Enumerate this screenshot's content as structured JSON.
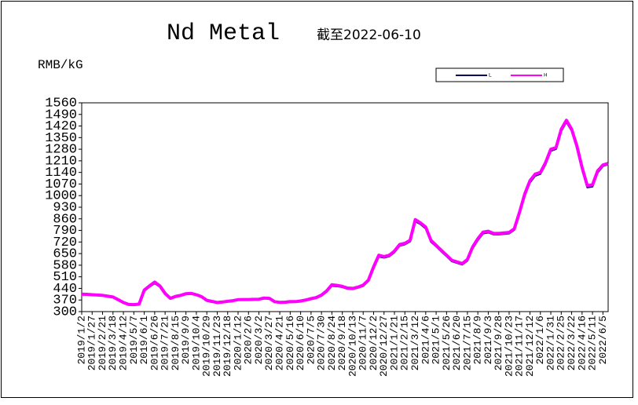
{
  "chart_data": {
    "type": "line",
    "title": "Nd Metal",
    "subtitle": "截至2022-06-10",
    "y_label": "RMB/kG",
    "categories": [
      "2019/1/2",
      null,
      "2019/1/27",
      null,
      "2019/2/21",
      null,
      "2019/3/18",
      null,
      "2019/4/12",
      null,
      "2019/5/7",
      null,
      "2019/6/1",
      null,
      "2019/6/26",
      null,
      "2019/7/21",
      null,
      "2019/8/15",
      null,
      "2019/9/9",
      null,
      "2019/10/4",
      null,
      "2019/10/29",
      null,
      "2019/11/23",
      null,
      "2019/12/18",
      null,
      "2020/1/12",
      null,
      "2020/2/6",
      null,
      "2020/3/2",
      null,
      "2020/3/27",
      null,
      "2020/4/21",
      null,
      "2020/5/16",
      null,
      "2020/6/10",
      null,
      "2020/7/5",
      null,
      "2020/7/30",
      null,
      "2020/8/24",
      null,
      "2020/9/18",
      null,
      "2020/10/13",
      null,
      "2020/11/7",
      null,
      "2020/12/2",
      null,
      "2020/12/27",
      null,
      "2021/1/21",
      null,
      "2021/2/15",
      null,
      "2021/3/12",
      null,
      "2021/4/6",
      null,
      "2021/5/1",
      null,
      "2021/5/26",
      null,
      "2021/6/20",
      null,
      "2021/7/15",
      null,
      "2021/8/9",
      null,
      "2021/9/3",
      null,
      "2021/9/28",
      null,
      "2021/10/23",
      null,
      "2021/11/17",
      null,
      "2021/12/12",
      null,
      "2022/1/6",
      null,
      "2022/1/31",
      null,
      "2022/2/25",
      null,
      "2022/3/22",
      null,
      "2022/4/16",
      null,
      "2022/5/11",
      null,
      "2022/6/5",
      null
    ],
    "series": [
      {
        "name": "L",
        "color": "#000066",
        "values": [
          403,
          402,
          400,
          398,
          396,
          391,
          386,
          370,
          352,
          341,
          340,
          343,
          425,
          450,
          472,
          450,
          405,
          377,
          388,
          395,
          405,
          407,
          400,
          387,
          365,
          358,
          352,
          355,
          360,
          364,
          370,
          371,
          371,
          372,
          373,
          380,
          378,
          357,
          353,
          354,
          357,
          358,
          362,
          367,
          375,
          382,
          396,
          420,
          456,
          453,
          448,
          438,
          436,
          444,
          455,
          485,
          562,
          632,
          626,
          634,
          658,
          698,
          706,
          724,
          845,
          828,
          802,
          722,
          694,
          664,
          634,
          604,
          594,
          584,
          608,
          682,
          732,
          772,
          778,
          766,
          766,
          769,
          772,
          794,
          890,
          1000,
          1080,
          1120,
          1132,
          1190,
          1270,
          1282,
          1390,
          1445,
          1392,
          1290,
          1160,
          1050,
          1055,
          1140,
          1178,
          1190
        ]
      },
      {
        "name": "H",
        "color": "#ff00ff",
        "values": [
          405,
          404,
          402,
          400,
          398,
          393,
          388,
          372,
          355,
          343,
          342,
          345,
          430,
          455,
          478,
          455,
          410,
          380,
          392,
          398,
          408,
          410,
          402,
          390,
          368,
          362,
          355,
          358,
          362,
          366,
          372,
          373,
          373,
          374,
          375,
          382,
          380,
          360,
          356,
          357,
          360,
          360,
          364,
          370,
          378,
          385,
          400,
          425,
          462,
          458,
          452,
          442,
          440,
          448,
          460,
          490,
          570,
          640,
          632,
          640,
          665,
          705,
          712,
          730,
          855,
          835,
          810,
          730,
          700,
          670,
          640,
          610,
          600,
          590,
          615,
          690,
          740,
          780,
          785,
          772,
          772,
          775,
          778,
          800,
          900,
          1010,
          1090,
          1130,
          1140,
          1200,
          1280,
          1290,
          1400,
          1455,
          1400,
          1300,
          1170,
          1060,
          1065,
          1150,
          1185,
          1195
        ]
      }
    ],
    "ylim": [
      300,
      1560
    ],
    "yticks": [
      300,
      370,
      440,
      510,
      580,
      650,
      720,
      790,
      860,
      930,
      1000,
      1070,
      1140,
      1210,
      1280,
      1350,
      1420,
      1490,
      1560
    ],
    "grid": false,
    "legend": "top-right"
  }
}
